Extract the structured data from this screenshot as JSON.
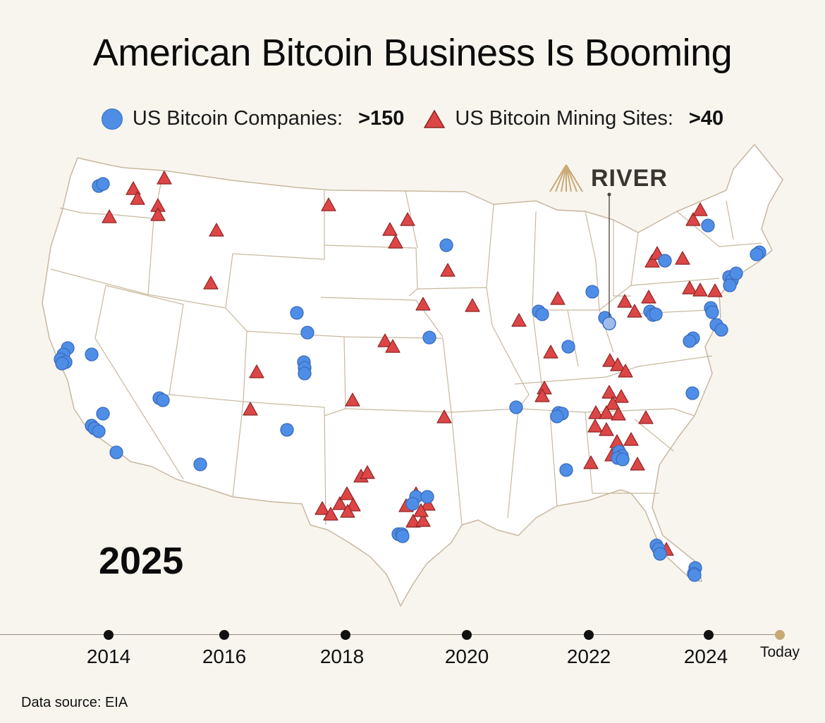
{
  "title": "American Bitcoin Business Is Booming",
  "legend": {
    "companies_label": "US Bitcoin Companies:",
    "companies_count": ">150",
    "mining_label": "US Bitcoin Mining Sites:",
    "mining_count": ">40"
  },
  "brand": {
    "name": "RIVER"
  },
  "year": "2025",
  "timeline": {
    "labels": [
      "2014",
      "2016",
      "2018",
      "2020",
      "2022",
      "2024",
      "Today"
    ]
  },
  "source": "Data source: EIA",
  "colors": {
    "company": "#4f8ee6",
    "company_stroke": "#3a6cc0",
    "mining": "#dc4646",
    "mining_stroke": "#8e2424",
    "map_fill": "#ffffff",
    "map_border": "#c8b89f",
    "background": "#f8f5ef",
    "today_marker": "#c9a874"
  }
}
